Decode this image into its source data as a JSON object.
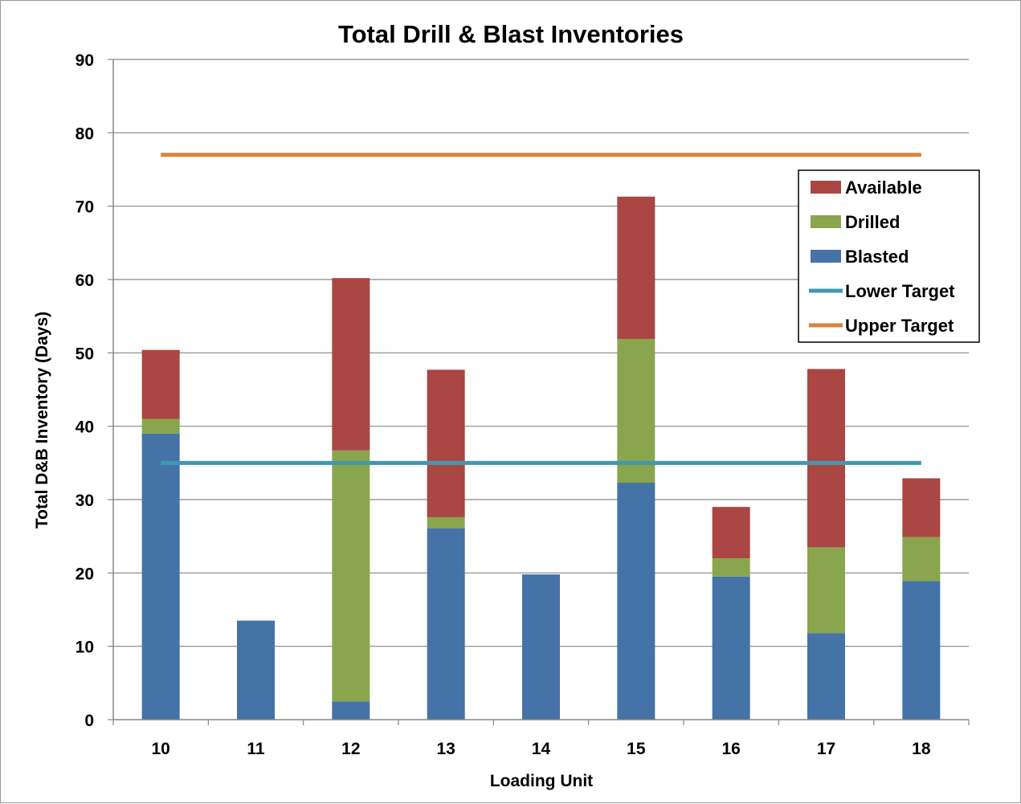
{
  "chart_data": {
    "type": "bar",
    "stacked": true,
    "title": "Total Drill & Blast Inventories",
    "xlabel": "Loading Unit",
    "ylabel": "Total D&B Inventory (Days)",
    "ylim": [
      0,
      90
    ],
    "yticks": [
      0,
      10,
      20,
      30,
      40,
      50,
      60,
      70,
      80,
      90
    ],
    "grid": true,
    "legend_position": "top-right",
    "categories": [
      "10",
      "11",
      "12",
      "13",
      "14",
      "15",
      "16",
      "17",
      "18"
    ],
    "series": [
      {
        "name": "Blasted",
        "color": "#4572a7",
        "values": [
          39,
          13.5,
          2.5,
          26.1,
          19.8,
          32.3,
          19.5,
          11.8,
          18.9
        ]
      },
      {
        "name": "Drilled",
        "color": "#89a54e",
        "values": [
          2,
          0,
          34.2,
          1.5,
          0,
          19.6,
          2.5,
          11.7,
          6
        ]
      },
      {
        "name": "Available",
        "color": "#aa4643",
        "values": [
          9.4,
          0,
          23.5,
          20.1,
          0,
          19.4,
          7,
          24.3,
          8
        ]
      }
    ],
    "lines": [
      {
        "name": "Lower Target",
        "color": "#4198af",
        "value": 35
      },
      {
        "name": "Upper Target",
        "color": "#db843d",
        "value": 77
      }
    ],
    "legend": [
      "Available",
      "Drilled",
      "Blasted",
      "Lower Target",
      "Upper Target"
    ]
  }
}
